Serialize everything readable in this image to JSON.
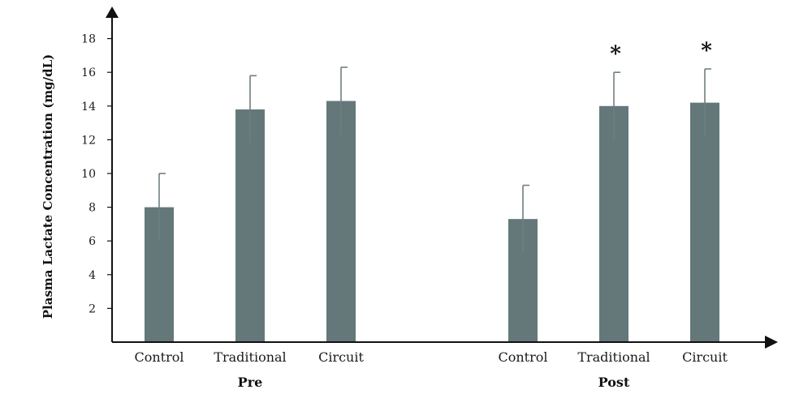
{
  "chart_data": {
    "type": "bar",
    "title": "",
    "ylabel": "Plasma Lactate Concentration (mg/dL)",
    "xlabel": "",
    "ylim": [
      0,
      19
    ],
    "yticks": [
      2,
      4,
      6,
      8,
      10,
      12,
      14,
      16,
      18
    ],
    "grid": false,
    "bar_color": "#64787a",
    "groups": [
      {
        "label": "Pre",
        "bars": [
          {
            "category": "Control",
            "value": 8.0,
            "error": 2.0,
            "annotation": ""
          },
          {
            "category": "Traditional",
            "value": 13.8,
            "error": 2.0,
            "annotation": ""
          },
          {
            "category": "Circuit",
            "value": 14.3,
            "error": 2.0,
            "annotation": ""
          }
        ]
      },
      {
        "label": "Post",
        "bars": [
          {
            "category": "Control",
            "value": 7.3,
            "error": 2.0,
            "annotation": ""
          },
          {
            "category": "Traditional",
            "value": 14.0,
            "error": 2.0,
            "annotation": "*"
          },
          {
            "category": "Circuit",
            "value": 14.2,
            "error": 2.0,
            "annotation": "*"
          }
        ]
      }
    ]
  }
}
